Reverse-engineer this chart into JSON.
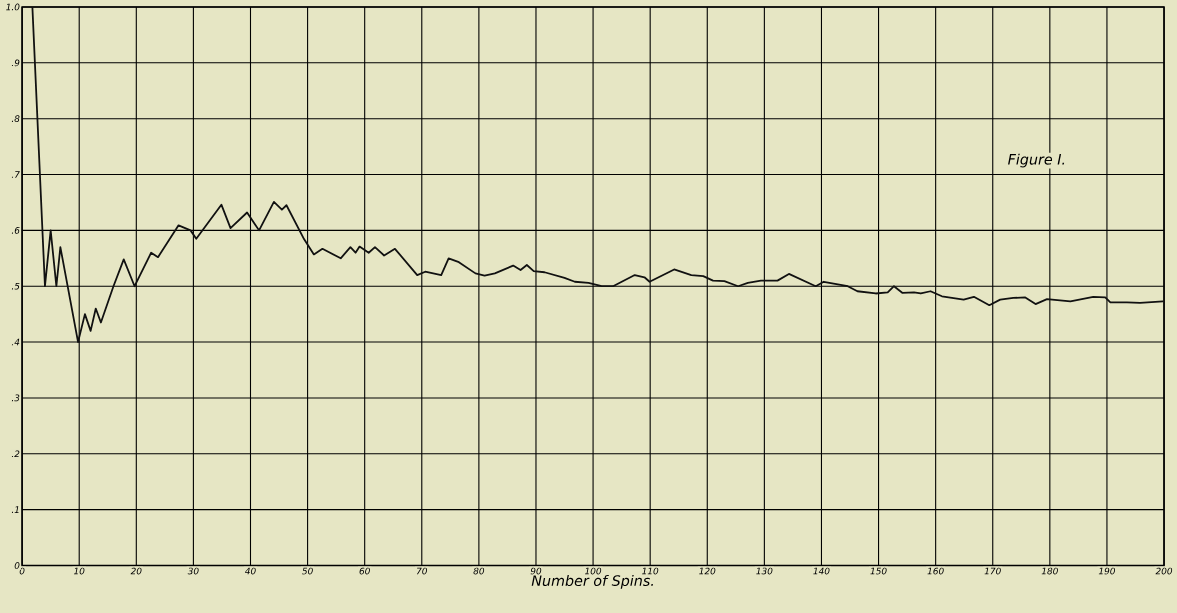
{
  "chart_data": {
    "type": "line",
    "xlabel": "Number of Spins.",
    "annotations": [
      "Figure I."
    ],
    "xlim": [
      0,
      200
    ],
    "ylim": [
      0,
      1
    ],
    "xticks": [
      0,
      10,
      20,
      30,
      40,
      50,
      60,
      70,
      80,
      90,
      100,
      110,
      120,
      130,
      140,
      150,
      160,
      170,
      180,
      190,
      200
    ],
    "yticks": [
      0,
      {
        "value": 0.1,
        "label": ".1"
      },
      {
        "value": 0.2,
        "label": ".2"
      },
      {
        "value": 0.3,
        "label": ".3"
      },
      {
        "value": 0.4,
        "label": ".4"
      },
      {
        "value": 0.5,
        "label": ".5"
      },
      {
        "value": 0.6,
        "label": ".6"
      },
      {
        "value": 0.7,
        "label": ".7"
      },
      {
        "value": 0.8,
        "label": ".8"
      },
      {
        "value": 0.9,
        "label": ".9"
      },
      {
        "value": 1,
        "label": "1.0"
      }
    ],
    "grid": true,
    "marker": "none",
    "line_style": "solid",
    "series": [
      {
        "color": "#111111",
        "x": [
          1.8,
          4,
          5,
          6,
          6.7,
          9.8,
          11,
          12,
          12.9,
          13.8,
          16,
          17.8,
          19.7,
          22.6,
          23.8,
          27.4,
          29.5,
          30.5,
          34.9,
          36.5,
          39.4,
          41.5,
          44.1,
          45.5,
          46.3,
          49.4,
          51.1,
          52.6,
          55.8,
          57.5,
          58.4,
          59.1,
          60.7,
          61.8,
          63.4,
          65.3,
          69.2,
          70.6,
          73.4,
          74.7,
          76.5,
          79.4,
          81,
          82.8,
          86,
          87.3,
          88.4,
          89.6,
          91.5,
          95,
          96.8,
          99.2,
          101.5,
          103.5,
          107.3,
          109,
          109.9,
          114.2,
          117.2,
          119.3,
          121,
          123,
          125.4,
          127.1,
          129.4,
          132.3,
          134.3,
          139,
          140.4,
          144.6,
          146.3,
          149.5,
          151.6,
          152.7,
          154.2,
          156.2,
          157.4,
          159.1,
          161.1,
          164.9,
          166.7,
          169.4,
          171.3,
          173.6,
          175.7,
          177.5,
          179.5,
          183.6,
          187.6,
          189.7,
          190.6,
          193.5,
          195.8,
          199.8
        ],
        "values": [
          1.0,
          0.5,
          0.6,
          0.5,
          0.57,
          0.4,
          0.45,
          0.42,
          0.46,
          0.435,
          0.5,
          0.548,
          0.5,
          0.56,
          0.552,
          0.609,
          0.6,
          0.585,
          0.646,
          0.604,
          0.632,
          0.6,
          0.651,
          0.637,
          0.645,
          0.584,
          0.557,
          0.567,
          0.55,
          0.57,
          0.56,
          0.571,
          0.56,
          0.57,
          0.555,
          0.567,
          0.52,
          0.526,
          0.52,
          0.55,
          0.543,
          0.523,
          0.519,
          0.523,
          0.537,
          0.529,
          0.538,
          0.527,
          0.525,
          0.515,
          0.508,
          0.506,
          0.5,
          0.5,
          0.52,
          0.516,
          0.508,
          0.53,
          0.52,
          0.518,
          0.51,
          0.509,
          0.5,
          0.506,
          0.51,
          0.51,
          0.522,
          0.5,
          0.508,
          0.5,
          0.491,
          0.487,
          0.489,
          0.5,
          0.488,
          0.489,
          0.487,
          0.491,
          0.482,
          0.476,
          0.481,
          0.466,
          0.476,
          0.479,
          0.48,
          0.468,
          0.477,
          0.473,
          0.481,
          0.48,
          0.471,
          0.471,
          0.47,
          0.473
        ]
      }
    ]
  }
}
